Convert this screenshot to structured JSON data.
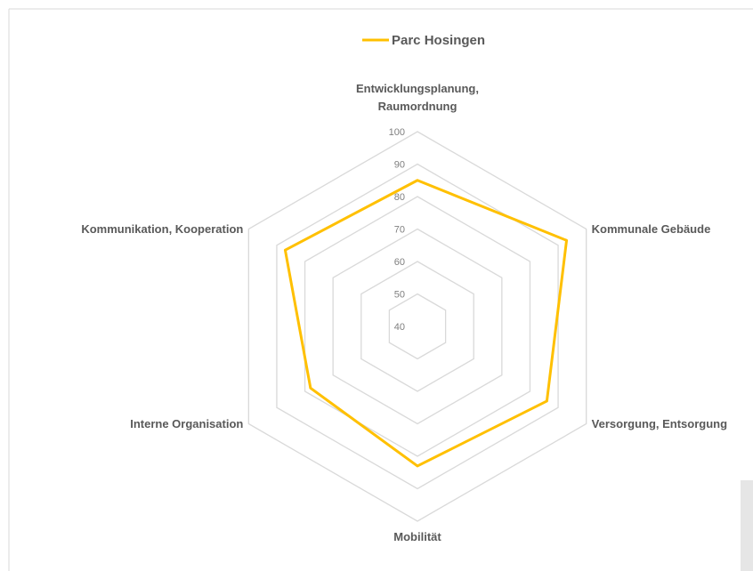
{
  "chart_data": {
    "type": "radar",
    "categories": [
      "Entwicklungsplanung, Raumordnung",
      "Kommunale Gebäude",
      "Versorgung, Entsorgung",
      "Mobilität",
      "Interne Organisation",
      "Kommunikation, Kooperation"
    ],
    "series": [
      {
        "name": "Parc Hosingen",
        "color": "#ffc000",
        "values": [
          85,
          93,
          86,
          83,
          78,
          87
        ]
      }
    ],
    "ylim": [
      40,
      100
    ],
    "yticks": [
      40,
      50,
      60,
      70,
      80,
      90,
      100
    ],
    "grid": true,
    "legend": "top"
  }
}
